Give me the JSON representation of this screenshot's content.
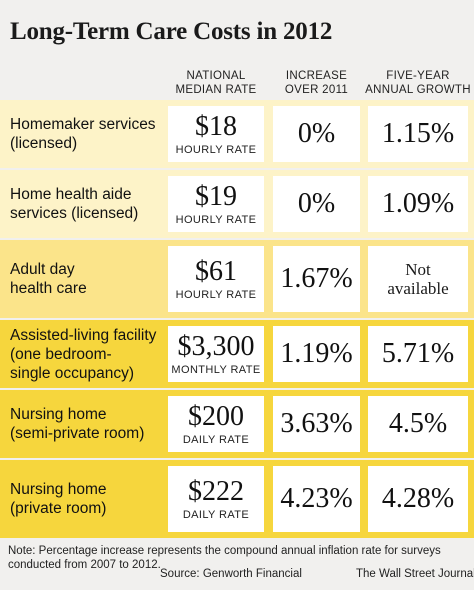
{
  "title": "Long-Term Care Costs in 2012",
  "colors": {
    "background": "#f1f0ee",
    "pale_yellow": "#fdf3c8",
    "mid_yellow": "#fbe48a",
    "bright_yellow": "#f6d63d",
    "cell": "#ffffff"
  },
  "headers": [
    [
      "NATIONAL",
      "MEDIAN RATE"
    ],
    [
      "INCREASE",
      "OVER  2011"
    ],
    [
      "FIVE-YEAR",
      "ANNUAL GROWTH"
    ]
  ],
  "rows": [
    {
      "label": [
        "Homemaker services",
        "(licensed)"
      ],
      "rate": "$18",
      "unit": "HOURLY RATE",
      "increase": "0%",
      "growth": [
        "1.15%"
      ],
      "shade": "pale_yellow"
    },
    {
      "label": [
        "Home health aide",
        "services (licensed)"
      ],
      "rate": "$19",
      "unit": "HOURLY RATE",
      "increase": "0%",
      "growth": [
        "1.09%"
      ],
      "shade": "pale_yellow"
    },
    {
      "label": [
        "Adult day",
        "health care"
      ],
      "rate": "$61",
      "unit": "HOURLY RATE",
      "increase": "1.67%",
      "growth": [
        "Not",
        "available"
      ],
      "shade": "mid_yellow"
    },
    {
      "label": [
        "Assisted-living facility",
        "(one bedroom-",
        "single occupancy)"
      ],
      "rate": "$3,300",
      "unit": "MONTHLY RATE",
      "increase": "1.19%",
      "growth": [
        "5.71%"
      ],
      "shade": "bright_yellow"
    },
    {
      "label": [
        "Nursing home",
        "(semi-private room)"
      ],
      "rate": "$200",
      "unit": "DAILY RATE",
      "increase": "3.63%",
      "growth": [
        "4.5%"
      ],
      "shade": "bright_yellow"
    },
    {
      "label": [
        "Nursing home",
        "(private room)"
      ],
      "rate": "$222",
      "unit": "DAILY RATE",
      "increase": "4.23%",
      "growth": [
        "4.28%"
      ],
      "shade": "bright_yellow"
    }
  ],
  "note": [
    "Note: Percentage increase represents the compound annual inflation rate for surveys",
    "conducted from 2007 to 2012."
  ],
  "source": "Source: Genworth Financial",
  "publisher": "The Wall Street Journal",
  "chart_data": {
    "type": "table",
    "title": "Long-Term Care Costs in 2012",
    "columns": [
      "NATIONAL MEDIAN RATE",
      "INCREASE OVER  2011",
      "FIVE-YEAR ANNUAL GROWTH"
    ],
    "rows": [
      {
        "category": "Homemaker services (licensed)",
        "national_median_rate": 18,
        "rate_unit": "HOURLY RATE",
        "increase_over_2011_pct": 0,
        "five_year_annual_growth_pct": 1.15
      },
      {
        "category": "Home health aide services (licensed)",
        "national_median_rate": 19,
        "rate_unit": "HOURLY RATE",
        "increase_over_2011_pct": 0,
        "five_year_annual_growth_pct": 1.09
      },
      {
        "category": "Adult day health care",
        "national_median_rate": 61,
        "rate_unit": "HOURLY RATE",
        "increase_over_2011_pct": 1.67,
        "five_year_annual_growth_pct": null
      },
      {
        "category": "Assisted-living facility (one bedroom-single occupancy)",
        "national_median_rate": 3300,
        "rate_unit": "MONTHLY RATE",
        "increase_over_2011_pct": 1.19,
        "five_year_annual_growth_pct": 5.71
      },
      {
        "category": "Nursing home (semi-private room)",
        "national_median_rate": 200,
        "rate_unit": "DAILY RATE",
        "increase_over_2011_pct": 3.63,
        "five_year_annual_growth_pct": 4.5
      },
      {
        "category": "Nursing home (private room)",
        "national_median_rate": 222,
        "rate_unit": "DAILY RATE",
        "increase_over_2011_pct": 4.23,
        "five_year_annual_growth_pct": 4.28
      }
    ]
  }
}
